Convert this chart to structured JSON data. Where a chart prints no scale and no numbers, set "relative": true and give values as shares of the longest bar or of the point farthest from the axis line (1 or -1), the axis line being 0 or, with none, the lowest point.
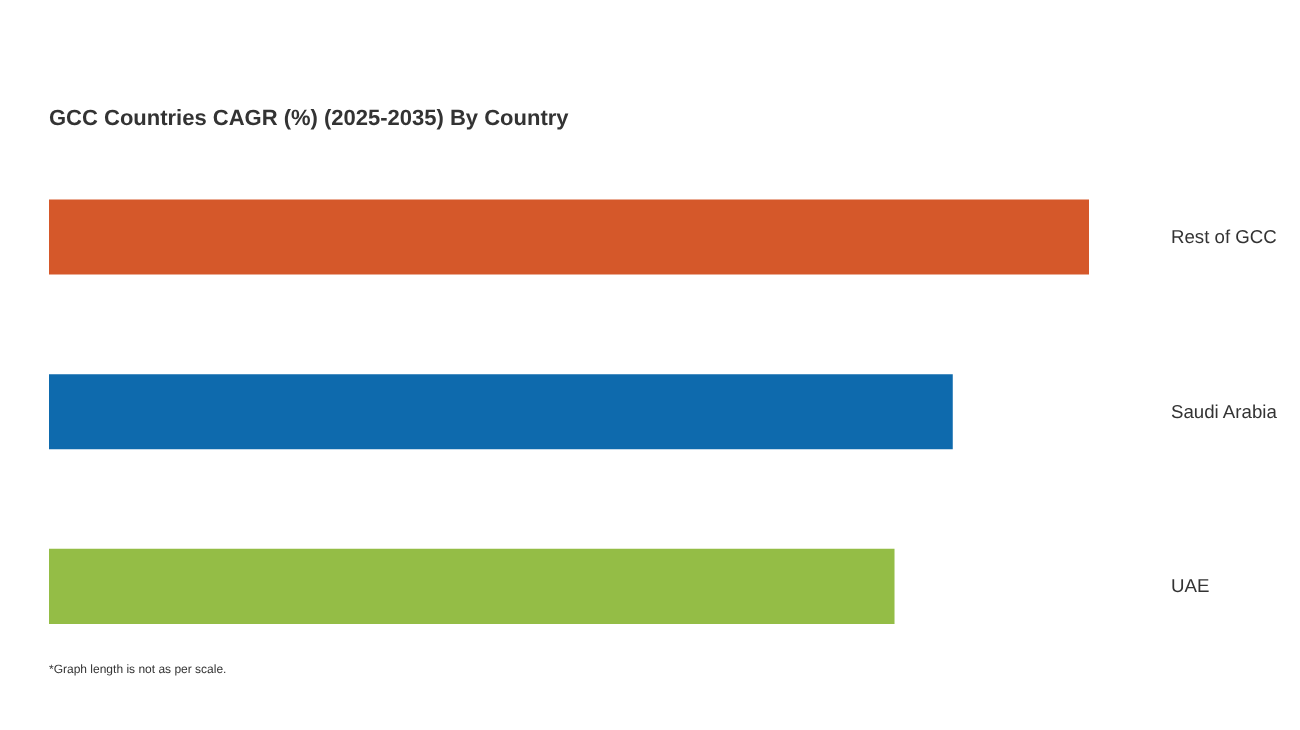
{
  "chart_data": {
    "type": "bar",
    "orientation": "horizontal",
    "relative": true,
    "title": "GCC Countries CAGR (%) (2025-2035) By Country",
    "categories": [
      "Rest of GCC",
      "Saudi Arabia",
      "UAE"
    ],
    "values": [
      1,
      0.869,
      0.813
    ],
    "colors": [
      "#d5582a",
      "#0e6aad",
      "#94bd46"
    ],
    "annotations": [
      "*Graph length is not as per scale."
    ]
  }
}
